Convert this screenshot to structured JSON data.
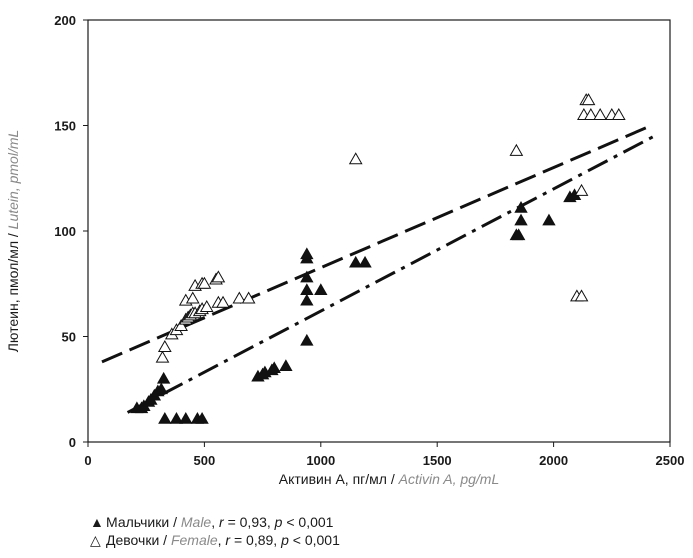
{
  "chart_data": {
    "type": "scatter",
    "title": "",
    "xlabel": {
      "main": "Активин А, пг/мл / ",
      "english": "Activin A, pg/mL"
    },
    "ylabel": {
      "main": "Лютеин, пмол/мл / ",
      "english": "Lutein, pmol/mL"
    },
    "xlim": [
      0,
      2500
    ],
    "ylim": [
      0,
      200
    ],
    "xticks": [
      "0",
      "500",
      "1000",
      "1500",
      "2000",
      "2500"
    ],
    "yticks": [
      "0",
      "50",
      "100",
      "150",
      "200"
    ],
    "grid": false,
    "series": [
      {
        "name": "Мальчики / Male",
        "marker": "filled-triangle",
        "points": [
          [
            210,
            16
          ],
          [
            230,
            16
          ],
          [
            240,
            17
          ],
          [
            260,
            19
          ],
          [
            270,
            20
          ],
          [
            285,
            22
          ],
          [
            300,
            24
          ],
          [
            315,
            25
          ],
          [
            325,
            30
          ],
          [
            330,
            11
          ],
          [
            380,
            11
          ],
          [
            420,
            11
          ],
          [
            470,
            11
          ],
          [
            490,
            11
          ],
          [
            730,
            31
          ],
          [
            750,
            32
          ],
          [
            760,
            33
          ],
          [
            790,
            34
          ],
          [
            800,
            35
          ],
          [
            850,
            36
          ],
          [
            940,
            48
          ],
          [
            940,
            67
          ],
          [
            940,
            72
          ],
          [
            940,
            78
          ],
          [
            940,
            87
          ],
          [
            940,
            89
          ],
          [
            1000,
            72
          ],
          [
            1150,
            85
          ],
          [
            1190,
            85
          ],
          [
            1840,
            98
          ],
          [
            1850,
            98
          ],
          [
            1860,
            105
          ],
          [
            1860,
            111
          ],
          [
            1980,
            105
          ],
          [
            2070,
            116
          ],
          [
            2090,
            117
          ]
        ],
        "trendline": {
          "style": "dash-dot",
          "x": [
            170,
            2450
          ],
          "y": [
            14,
            146
          ]
        }
      },
      {
        "name": "Девочки / Female",
        "marker": "open-triangle",
        "points": [
          [
            320,
            40
          ],
          [
            330,
            45
          ],
          [
            360,
            51
          ],
          [
            380,
            53
          ],
          [
            400,
            55
          ],
          [
            420,
            58
          ],
          [
            430,
            59
          ],
          [
            440,
            60
          ],
          [
            450,
            61
          ],
          [
            460,
            61
          ],
          [
            480,
            62
          ],
          [
            490,
            63
          ],
          [
            510,
            64
          ],
          [
            420,
            67
          ],
          [
            450,
            68
          ],
          [
            460,
            74
          ],
          [
            490,
            75
          ],
          [
            500,
            75
          ],
          [
            550,
            77
          ],
          [
            560,
            78
          ],
          [
            560,
            66
          ],
          [
            580,
            66
          ],
          [
            650,
            68
          ],
          [
            690,
            68
          ],
          [
            1150,
            134
          ],
          [
            1840,
            138
          ],
          [
            2100,
            69
          ],
          [
            2120,
            69
          ],
          [
            2120,
            119
          ],
          [
            2130,
            155
          ],
          [
            2140,
            162
          ],
          [
            2150,
            162
          ],
          [
            2160,
            155
          ],
          [
            2200,
            155
          ],
          [
            2250,
            155
          ],
          [
            2280,
            155
          ]
        ],
        "trendline": {
          "style": "long-dash",
          "x": [
            60,
            2420
          ],
          "y": [
            38,
            150
          ]
        }
      }
    ]
  },
  "legend": [
    {
      "symbol": "▲",
      "label": "Мальчики",
      "sep": " / ",
      "english": "Male",
      "stat": ", r = 0,93, p < 0,001"
    },
    {
      "symbol": "△",
      "label": "Девочки",
      "sep": " / ",
      "english": "Female",
      "stat": ", r = 0,89, p < 0,001"
    }
  ]
}
